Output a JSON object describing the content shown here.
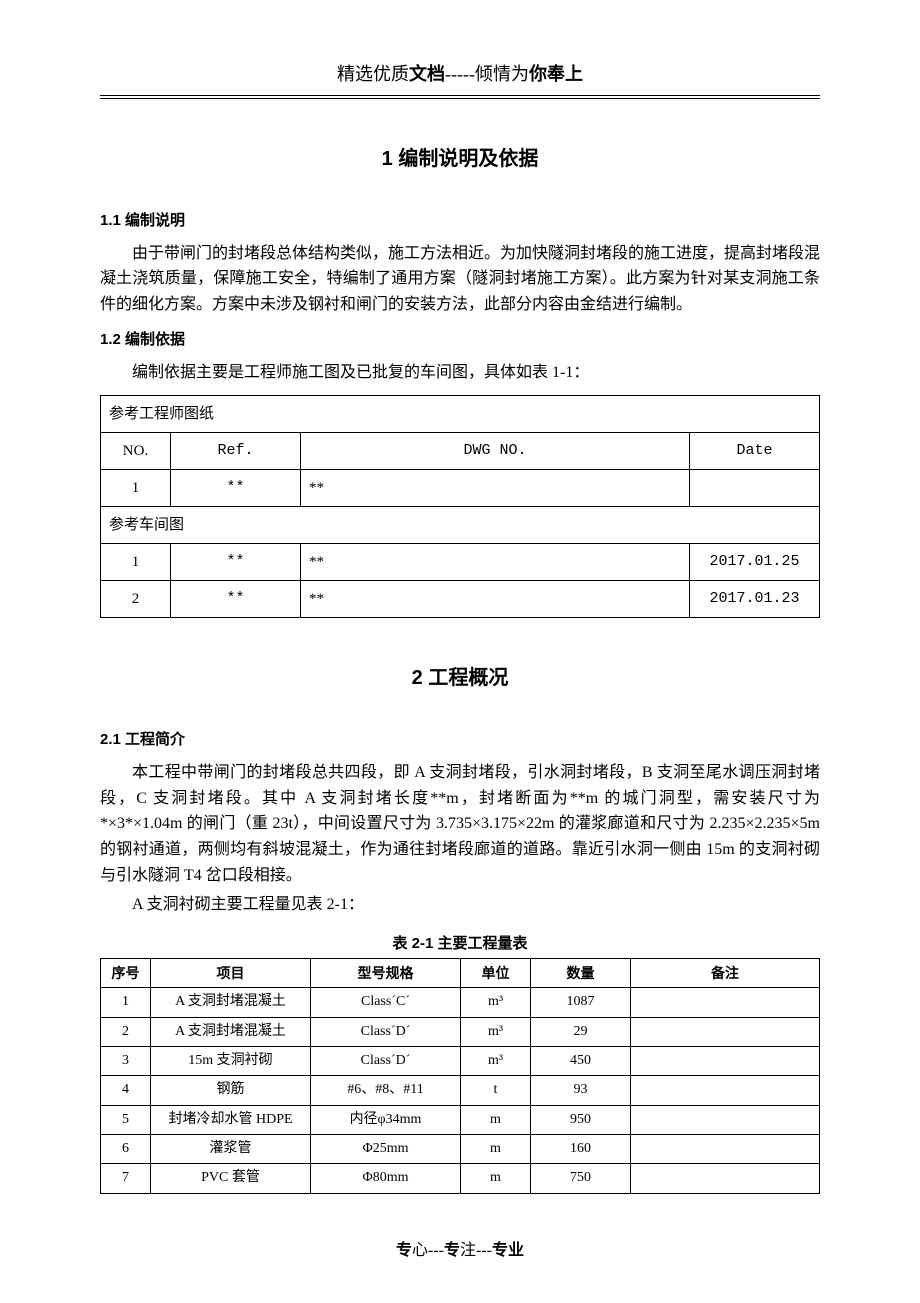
{
  "header": {
    "prefix": "精选优质",
    "bold1": "文档",
    "mid": "-----倾情为",
    "bold2": "你奉上"
  },
  "section1": {
    "title": "1   编制说明及依据",
    "s11_title": "1.1 编制说明",
    "s11_body": "由于带闸门的封堵段总体结构类似，施工方法相近。为加快隧洞封堵段的施工进度，提高封堵段混凝土浇筑质量，保障施工安全，特编制了通用方案（隧洞封堵施工方案）。此方案为针对某支洞施工条件的细化方案。方案中未涉及钢衬和闸门的安装方法，此部分内容由金结进行编制。",
    "s12_title": "1.2 编制依据",
    "s12_body": "编制依据主要是工程师施工图及已批复的车间图，具体如表 1-1："
  },
  "table1": {
    "block1_title": "参考工程师图纸",
    "headers": {
      "c0": "NO.",
      "c1": "Ref.",
      "c2": "DWG NO.",
      "c3": "Date"
    },
    "block1_rows": [
      {
        "no": "1",
        "ref": "**",
        "dwg": "**",
        "date": ""
      }
    ],
    "block2_title": "参考车间图",
    "block2_rows": [
      {
        "no": "1",
        "ref": "**",
        "dwg": "**",
        "date": "2017.01.25"
      },
      {
        "no": "2",
        "ref": "**",
        "dwg": "**",
        "date": "2017.01.23"
      }
    ]
  },
  "section2": {
    "title": "2   工程概况",
    "s21_title": "2.1 工程简介",
    "s21_body1": "本工程中带闸门的封堵段总共四段，即 A 支洞封堵段，引水洞封堵段，B 支洞至尾水调压洞封堵段，C 支洞封堵段。其中 A 支洞封堵长度**m，封堵断面为**m 的城门洞型，需安装尺寸为*×3*×1.04m 的闸门（重 23t），中间设置尺寸为 3.735×3.175×22m 的灌浆廊道和尺寸为 2.235×2.235×5m 的钢衬通道，两侧均有斜坡混凝土，作为通往封堵段廊道的道路。靠近引水洞一侧由 15m 的支洞衬砌与引水隧洞 T4 岔口段相接。",
    "s21_body2": "A 支洞衬砌主要工程量见表 2-1："
  },
  "table2": {
    "caption": "表 2-1   主要工程量表",
    "headers": {
      "c0": "序号",
      "c1": "项目",
      "c2": "型号规格",
      "c3": "单位",
      "c4": "数量",
      "c5": "备注"
    },
    "rows": [
      {
        "n": "1",
        "item": "A 支洞封堵混凝土",
        "spec": "Class´C´",
        "unit": "m³",
        "qty": "1087",
        "note": ""
      },
      {
        "n": "2",
        "item": "A 支洞封堵混凝土",
        "spec": "Class´D´",
        "unit": "m³",
        "qty": "29",
        "note": ""
      },
      {
        "n": "3",
        "item": "15m 支洞衬砌",
        "spec": "Class´D´",
        "unit": "m³",
        "qty": "450",
        "note": ""
      },
      {
        "n": "4",
        "item": "钢筋",
        "spec": "#6、#8、#11",
        "unit": "t",
        "qty": "93",
        "note": ""
      },
      {
        "n": "5",
        "item": "封堵冷却水管 HDPE",
        "spec": "内径φ34mm",
        "unit": "m",
        "qty": "950",
        "note": ""
      },
      {
        "n": "6",
        "item": "灌浆管",
        "spec": "Φ25mm",
        "unit": "m",
        "qty": "160",
        "note": ""
      },
      {
        "n": "7",
        "item": "PVC 套管",
        "spec": "Φ80mm",
        "unit": "m",
        "qty": "750",
        "note": ""
      }
    ]
  },
  "footer": {
    "b1": "专",
    "t1": "心---",
    "b2": "专",
    "t2": "注---",
    "b3": "专业"
  }
}
